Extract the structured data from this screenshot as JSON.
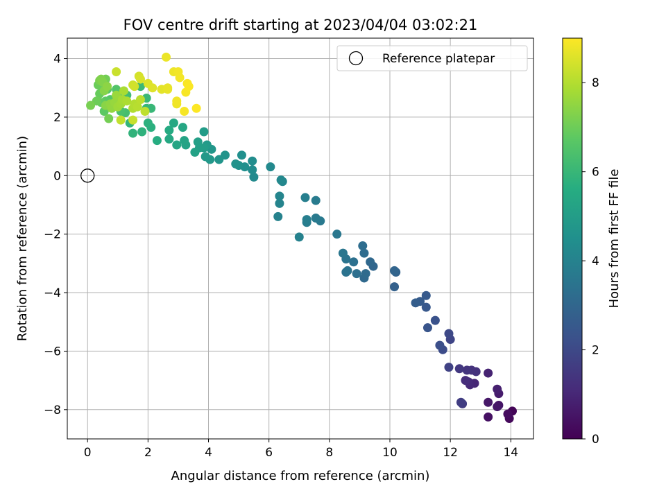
{
  "chart_data": {
    "type": "scatter",
    "title": "FOV centre drift starting at 2023/04/04 03:02:21",
    "xlabel": "Angular distance from reference (arcmin)",
    "ylabel": "Rotation from reference (arcmin)",
    "xlim": [
      -0.67,
      14.75
    ],
    "ylim": [
      -9.0,
      4.7
    ],
    "xticks": [
      "0",
      "2",
      "4",
      "6",
      "8",
      "10",
      "12",
      "14"
    ],
    "yticks": [
      "4",
      "2",
      "0",
      "−2",
      "−4",
      "−6",
      "−8"
    ],
    "grid": true,
    "legend": {
      "placement": "top-right",
      "label": "Reference platepar"
    },
    "reference_point": {
      "x": 0,
      "y": 0
    },
    "colorbar": {
      "label": "Hours from first FF file",
      "colormap": "viridis",
      "range": [
        0,
        9
      ],
      "ticks": [
        "0",
        "2",
        "4",
        "6",
        "8"
      ],
      "stops": [
        "#440154",
        "#472c7a",
        "#3b518b",
        "#2c718e",
        "#21908d",
        "#27ad81",
        "#5cc863",
        "#aadc32",
        "#fde725"
      ]
    },
    "series_points": [
      [
        14.05,
        -8.05,
        0.1
      ],
      [
        13.95,
        -8.3,
        0.2
      ],
      [
        13.9,
        -8.15,
        0.3
      ],
      [
        13.25,
        -8.25,
        0.4
      ],
      [
        13.6,
        -7.85,
        0.5
      ],
      [
        13.55,
        -7.9,
        0.55
      ],
      [
        13.25,
        -7.75,
        0.6
      ],
      [
        13.6,
        -7.45,
        0.7
      ],
      [
        13.55,
        -7.3,
        0.8
      ],
      [
        13.25,
        -6.75,
        0.9
      ],
      [
        12.8,
        -7.1,
        1.0
      ],
      [
        12.65,
        -7.15,
        1.05
      ],
      [
        12.6,
        -7.05,
        1.1
      ],
      [
        12.5,
        -7.0,
        1.2
      ],
      [
        12.85,
        -6.7,
        1.3
      ],
      [
        12.7,
        -6.65,
        1.35
      ],
      [
        12.55,
        -6.65,
        1.4
      ],
      [
        12.3,
        -6.6,
        1.5
      ],
      [
        12.4,
        -7.8,
        1.6
      ],
      [
        12.35,
        -7.75,
        1.65
      ],
      [
        11.95,
        -6.55,
        1.8
      ],
      [
        12.0,
        -5.6,
        1.9
      ],
      [
        11.95,
        -5.4,
        2.0
      ],
      [
        11.75,
        -5.95,
        2.1
      ],
      [
        11.65,
        -5.8,
        2.2
      ],
      [
        11.5,
        -4.95,
        2.3
      ],
      [
        11.25,
        -5.2,
        2.4
      ],
      [
        11.2,
        -4.5,
        2.5
      ],
      [
        11.2,
        -4.1,
        2.55
      ],
      [
        11.0,
        -4.3,
        2.6
      ],
      [
        10.85,
        -4.35,
        2.7
      ],
      [
        10.15,
        -3.8,
        2.8
      ],
      [
        10.2,
        -3.3,
        2.9
      ],
      [
        10.15,
        -3.25,
        2.95
      ],
      [
        9.45,
        -3.1,
        3.0
      ],
      [
        9.35,
        -2.95,
        3.05
      ],
      [
        9.15,
        -3.5,
        3.1
      ],
      [
        9.2,
        -3.35,
        3.15
      ],
      [
        9.15,
        -2.65,
        3.2
      ],
      [
        9.1,
        -2.4,
        3.25
      ],
      [
        8.9,
        -3.35,
        3.3
      ],
      [
        8.8,
        -2.95,
        3.35
      ],
      [
        8.55,
        -3.3,
        3.4
      ],
      [
        8.6,
        -3.25,
        3.45
      ],
      [
        8.55,
        -2.85,
        3.5
      ],
      [
        8.45,
        -2.65,
        3.55
      ],
      [
        8.25,
        -2.0,
        3.6
      ],
      [
        7.7,
        -1.55,
        3.65
      ],
      [
        7.55,
        -1.45,
        3.7
      ],
      [
        7.55,
        -0.85,
        3.75
      ],
      [
        7.25,
        -1.6,
        3.8
      ],
      [
        7.25,
        -1.5,
        3.85
      ],
      [
        7.2,
        -0.75,
        3.9
      ],
      [
        7.0,
        -2.1,
        3.95
      ],
      [
        6.3,
        -1.4,
        4.0
      ],
      [
        6.35,
        -0.95,
        4.05
      ],
      [
        6.35,
        -0.7,
        4.1
      ],
      [
        6.45,
        -0.2,
        4.15
      ],
      [
        6.4,
        -0.15,
        4.2
      ],
      [
        6.05,
        0.3,
        4.25
      ],
      [
        5.5,
        -0.05,
        4.3
      ],
      [
        5.45,
        0.2,
        4.35
      ],
      [
        5.45,
        0.5,
        4.4
      ],
      [
        5.2,
        0.3,
        4.45
      ],
      [
        5.1,
        0.7,
        4.5
      ],
      [
        5.0,
        0.35,
        4.55
      ],
      [
        4.9,
        0.4,
        4.6
      ],
      [
        4.55,
        0.7,
        4.65
      ],
      [
        4.35,
        0.55,
        4.7
      ],
      [
        4.1,
        0.9,
        4.75
      ],
      [
        4.05,
        0.55,
        4.8
      ],
      [
        3.9,
        0.65,
        4.85
      ],
      [
        3.95,
        1.05,
        4.9
      ],
      [
        3.85,
        1.5,
        4.95
      ],
      [
        3.85,
        0.95,
        5.0
      ],
      [
        3.7,
        0.95,
        5.05
      ],
      [
        3.65,
        1.15,
        5.1
      ],
      [
        3.55,
        0.8,
        5.15
      ],
      [
        3.25,
        1.05,
        5.2
      ],
      [
        3.2,
        1.2,
        5.25
      ],
      [
        2.95,
        1.05,
        5.3
      ],
      [
        3.15,
        1.65,
        5.35
      ],
      [
        2.85,
        1.8,
        5.4
      ],
      [
        2.7,
        1.25,
        5.45
      ],
      [
        2.7,
        1.55,
        5.5
      ],
      [
        2.3,
        1.2,
        5.6
      ],
      [
        2.1,
        1.65,
        5.7
      ],
      [
        2.0,
        1.8,
        5.75
      ],
      [
        1.8,
        1.5,
        5.8
      ],
      [
        1.5,
        1.45,
        5.85
      ],
      [
        1.4,
        1.8,
        5.9
      ],
      [
        1.95,
        2.3,
        5.95
      ],
      [
        2.1,
        2.3,
        6.0
      ],
      [
        1.95,
        2.65,
        6.05
      ],
      [
        1.75,
        3.05,
        6.1
      ],
      [
        1.3,
        2.75,
        6.2
      ],
      [
        1.25,
        2.15,
        6.3
      ],
      [
        1.1,
        2.2,
        6.4
      ],
      [
        1.0,
        2.7,
        6.5
      ],
      [
        0.95,
        2.95,
        6.55
      ],
      [
        0.75,
        2.6,
        6.6
      ],
      [
        0.65,
        2.95,
        6.65
      ],
      [
        0.6,
        2.55,
        6.7
      ],
      [
        0.55,
        2.2,
        6.75
      ],
      [
        0.5,
        2.95,
        6.8
      ],
      [
        0.45,
        2.5,
        6.85
      ],
      [
        0.4,
        2.8,
        6.9
      ],
      [
        0.35,
        3.1,
        6.95
      ],
      [
        0.3,
        2.55,
        7.0
      ],
      [
        0.6,
        3.3,
        7.05
      ],
      [
        0.7,
        1.95,
        7.1
      ],
      [
        0.1,
        2.4,
        7.15
      ],
      [
        0.4,
        3.25,
        7.2
      ],
      [
        0.45,
        3.3,
        7.25
      ],
      [
        0.5,
        3.2,
        7.3
      ],
      [
        0.55,
        2.9,
        7.35
      ],
      [
        0.6,
        2.4,
        7.4
      ],
      [
        0.65,
        3.05,
        7.45
      ],
      [
        0.75,
        2.45,
        7.5
      ],
      [
        0.8,
        2.3,
        7.55
      ],
      [
        0.9,
        2.5,
        7.6
      ],
      [
        0.95,
        2.75,
        7.65
      ],
      [
        1.0,
        2.35,
        7.7
      ],
      [
        1.1,
        2.45,
        7.75
      ],
      [
        1.15,
        2.6,
        7.8
      ],
      [
        1.2,
        2.9,
        7.85
      ],
      [
        1.3,
        2.55,
        7.9
      ],
      [
        1.5,
        2.3,
        7.95
      ],
      [
        1.55,
        2.45,
        8.0
      ],
      [
        1.65,
        2.35,
        8.05
      ],
      [
        1.75,
        2.6,
        8.1
      ],
      [
        1.9,
        2.2,
        8.15
      ],
      [
        1.1,
        1.9,
        8.2
      ],
      [
        1.5,
        1.9,
        8.25
      ],
      [
        0.95,
        3.55,
        8.3
      ],
      [
        1.5,
        3.1,
        8.35
      ],
      [
        1.55,
        3.05,
        8.4
      ],
      [
        1.7,
        3.4,
        8.45
      ],
      [
        1.75,
        3.3,
        8.5
      ],
      [
        2.0,
        3.15,
        8.55
      ],
      [
        2.15,
        3.0,
        8.6
      ],
      [
        2.45,
        2.95,
        8.65
      ],
      [
        2.65,
        3.0,
        8.7
      ],
      [
        2.65,
        2.95,
        8.72
      ],
      [
        2.6,
        4.05,
        8.75
      ],
      [
        2.85,
        3.55,
        8.78
      ],
      [
        2.95,
        2.45,
        8.8
      ],
      [
        2.95,
        2.55,
        8.82
      ],
      [
        3.0,
        3.55,
        8.85
      ],
      [
        3.05,
        3.35,
        8.87
      ],
      [
        3.2,
        2.2,
        8.9
      ],
      [
        3.25,
        2.85,
        8.92
      ],
      [
        3.3,
        3.15,
        8.94
      ],
      [
        3.35,
        3.05,
        8.96
      ],
      [
        3.6,
        2.3,
        8.98
      ]
    ]
  }
}
